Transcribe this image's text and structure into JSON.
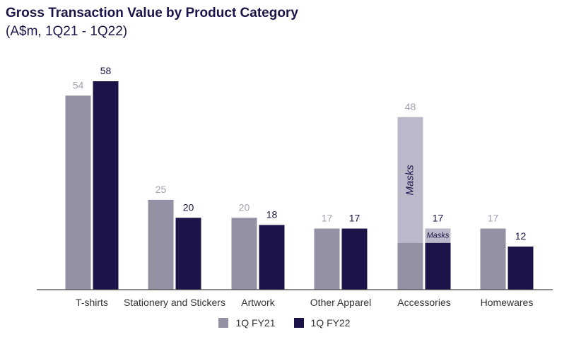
{
  "title": "Gross Transaction Value by Product Category",
  "subtitle": "(A$m, 1Q21 - 1Q22)",
  "chart_data": {
    "type": "bar",
    "title": "Gross Transaction Value by Product Category",
    "subtitle": "(A$m, 1Q21 - 1Q22)",
    "categories": [
      "T-shirts",
      "Stationery and Stickers",
      "Artwork",
      "Other Apparel",
      "Accessories",
      "Homewares"
    ],
    "series": [
      {
        "name": "1Q FY21",
        "values": [
          54,
          25,
          20,
          17,
          48,
          17
        ],
        "color": "#9391a3"
      },
      {
        "name": "1Q FY22",
        "values": [
          58,
          20,
          18,
          17,
          17,
          12
        ],
        "color": "#1c1348"
      }
    ],
    "segments": [
      {
        "category": "Accessories",
        "series": "1Q FY21",
        "label": "Masks",
        "value": 35,
        "color": "#b9b9c9"
      },
      {
        "category": "Accessories",
        "series": "1Q FY22",
        "label": "Masks",
        "value": 4,
        "color": "#b9b9c9"
      }
    ],
    "ylim": [
      0,
      58
    ],
    "grid": false,
    "legend": "bottom"
  }
}
